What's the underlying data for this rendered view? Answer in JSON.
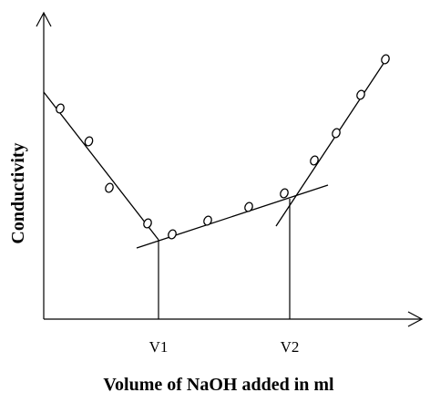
{
  "chart_data": {
    "type": "scatter",
    "title": "",
    "xlabel": "Volume of NaOH added in ml",
    "ylabel": "Conductivity",
    "x_ticks": [
      {
        "label": "V1",
        "value": 4.2
      },
      {
        "label": "V2",
        "value": 9.0
      }
    ],
    "xlim": [
      0,
      13.8
    ],
    "ylim": [
      0,
      10.5
    ],
    "grid": false,
    "legend": "none",
    "axis_color": "#000000",
    "marker": "open-circle",
    "points": [
      {
        "x": 0.6,
        "y": 7.7
      },
      {
        "x": 1.65,
        "y": 6.5
      },
      {
        "x": 2.4,
        "y": 4.8
      },
      {
        "x": 3.8,
        "y": 3.5
      },
      {
        "x": 4.7,
        "y": 3.1
      },
      {
        "x": 6.0,
        "y": 3.6
      },
      {
        "x": 7.5,
        "y": 4.1
      },
      {
        "x": 8.8,
        "y": 4.6
      },
      {
        "x": 9.9,
        "y": 5.8
      },
      {
        "x": 10.7,
        "y": 6.8
      },
      {
        "x": 11.6,
        "y": 8.2
      },
      {
        "x": 12.5,
        "y": 9.5
      }
    ],
    "fit_lines": [
      {
        "from": {
          "x": 0.0,
          "y": 8.3
        },
        "to": {
          "x": 4.2,
          "y": 2.9
        }
      },
      {
        "from": {
          "x": 3.4,
          "y": 2.6
        },
        "to": {
          "x": 10.4,
          "y": 4.9
        }
      },
      {
        "from": {
          "x": 8.5,
          "y": 3.4
        },
        "to": {
          "x": 12.6,
          "y": 9.6
        }
      }
    ],
    "equivalence_points": [
      {
        "label": "V1",
        "x": 4.2,
        "y": 2.9
      },
      {
        "label": "V2",
        "x": 9.0,
        "y": 4.4
      }
    ]
  }
}
